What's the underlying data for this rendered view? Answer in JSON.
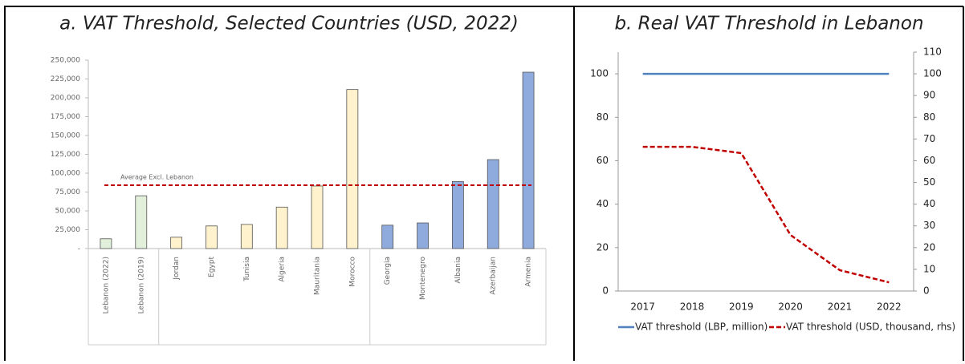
{
  "chart_data": [
    {
      "type": "bar",
      "title": "a. VAT Threshold, Selected Countries  (USD, 2022)",
      "categories": [
        "Lebanon (2022)",
        "Lebanon (2019)",
        "Jordan",
        "Egypt",
        "Tunisia",
        "Algeria",
        "Mauritania",
        "Morocco",
        "Georgia",
        "Montenegro",
        "Albania",
        "Azerbaijan",
        "Armenia"
      ],
      "values": [
        13000,
        70000,
        15000,
        30000,
        32000,
        55000,
        83000,
        211000,
        31000,
        34000,
        89000,
        118000,
        234000
      ],
      "colors": [
        "#e2efda",
        "#e2efda",
        "#fff2cc",
        "#fff2cc",
        "#fff2cc",
        "#fff2cc",
        "#fff2cc",
        "#fff2cc",
        "#8faadc",
        "#8faadc",
        "#8faadc",
        "#8faadc",
        "#8faadc"
      ],
      "average": {
        "label": "Average Excl. Lebanon",
        "value": 84000,
        "color": "#c00000"
      },
      "ylim": [
        0,
        250000
      ],
      "yticks": [
        {
          "value": 0,
          "label": "-"
        },
        {
          "value": 25000,
          "label": "25,000"
        },
        {
          "value": 50000,
          "label": "50,000"
        },
        {
          "value": 75000,
          "label": "75,000"
        },
        {
          "value": 100000,
          "label": "100,000"
        },
        {
          "value": 125000,
          "label": "125,000"
        },
        {
          "value": 150000,
          "label": "150,000"
        },
        {
          "value": 175000,
          "label": "175,000"
        },
        {
          "value": 200000,
          "label": "200,000"
        },
        {
          "value": 225000,
          "label": "225,000"
        },
        {
          "value": 250000,
          "label": "250,000"
        }
      ],
      "grid": false
    },
    {
      "type": "line",
      "title": "b. Real VAT Threshold in Lebanon",
      "categories": [
        "2017",
        "2018",
        "2019",
        "2020",
        "2021",
        "2022"
      ],
      "series": [
        {
          "name": "VAT threshold (LBP, million)",
          "color": "#4f81bd",
          "style": "solid",
          "values": [
            100,
            100,
            100,
            100,
            100,
            100
          ]
        },
        {
          "name": "VAT threshold (USD, thousand, rhs)",
          "color": "#c00000",
          "style": "dashed",
          "axis": "y2",
          "values": [
            66.4,
            66.4,
            63.5,
            25.8,
            9.6,
            4
          ]
        }
      ],
      "ylim": [
        0,
        110
      ],
      "yticks": [
        0,
        20,
        40,
        60,
        80,
        100
      ],
      "y2lim": [
        0,
        110
      ],
      "y2ticks": [
        0,
        10,
        20,
        30,
        40,
        50,
        60,
        70,
        80,
        90,
        100,
        110
      ],
      "legend": "bottom"
    }
  ]
}
